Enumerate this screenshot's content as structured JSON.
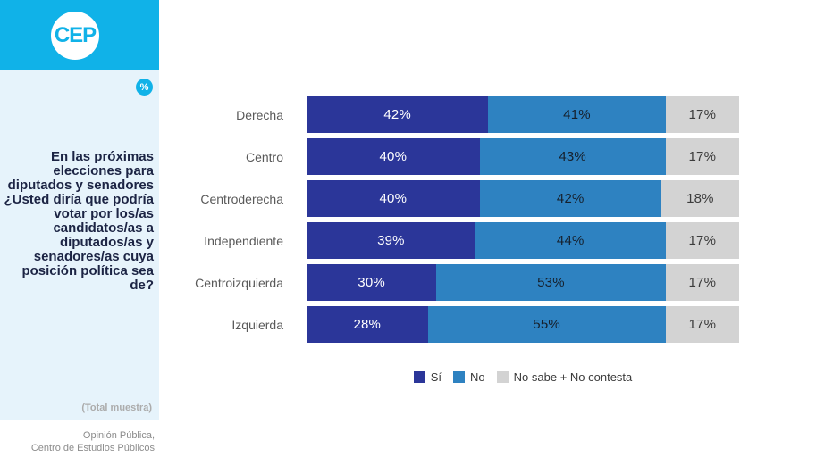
{
  "branding": {
    "logo_text": "CEP",
    "percent_badge": "%"
  },
  "sidebar": {
    "question": "En las próximas elecciones para diputados y senadores ¿Usted diría que podría votar por los/as candidatos/as a diputados/as y senadores/as cuya posición política sea de?",
    "sample_note": "(Total muestra)"
  },
  "footer": {
    "line1": "Opinión Pública,",
    "line2": "Centro de Estudios Públicos"
  },
  "colors": {
    "brand_cyan": "#10B2E8",
    "sidebar_bg": "#E6F3FB",
    "question_text": "#1C2444",
    "series": [
      "#2B3699",
      "#2E82C1",
      "#D3D3D3"
    ],
    "series_text": [
      "#FFFFFF",
      "#16202C",
      "#3C3C3C"
    ]
  },
  "chart_data": {
    "type": "bar",
    "orientation": "horizontal-stacked",
    "categories": [
      "Derecha",
      "Centro",
      "Centroderecha",
      "Independiente",
      "Centroizquierda",
      "Izquierda"
    ],
    "series": [
      {
        "name": "Sí",
        "slug": "si",
        "values": [
          42,
          40,
          40,
          39,
          30,
          28
        ]
      },
      {
        "name": "No",
        "slug": "no",
        "values": [
          41,
          43,
          42,
          44,
          53,
          55
        ]
      },
      {
        "name": "No sabe + No contesta",
        "slug": "no-sabe-no-contesta",
        "values": [
          17,
          17,
          18,
          17,
          17,
          17
        ]
      }
    ],
    "value_suffix": "%",
    "xlim": [
      0,
      100
    ],
    "grid": false,
    "legend_position": "bottom-center"
  }
}
